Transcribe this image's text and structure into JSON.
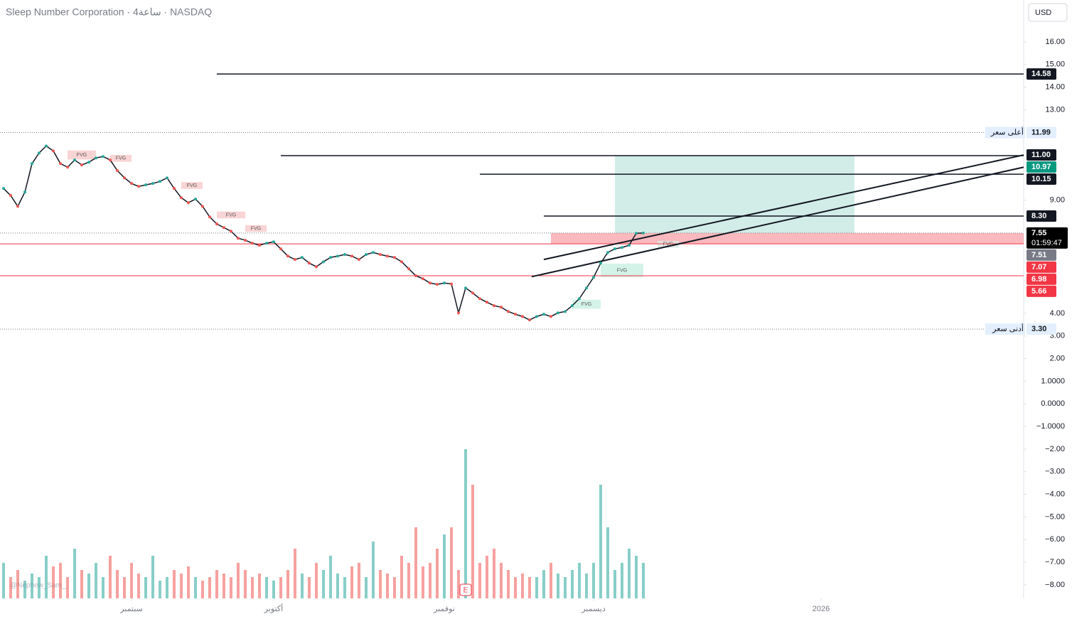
{
  "chart_data": {
    "type": "line",
    "title": "Sleep Number Corporation · 4ساعة · NASDAQ",
    "currency": "USD",
    "watermark": "@Nephew_Sam_",
    "earnings_marker": {
      "label": "E",
      "index": 65
    },
    "xlim": [
      -0.5,
      143.5
    ],
    "xticks": [
      {
        "value": 18,
        "label": "سبتمبر"
      },
      {
        "value": 38,
        "label": "أكتوبر"
      },
      {
        "value": 62,
        "label": "نوفمبر"
      },
      {
        "value": 83,
        "label": "ديسمبر"
      },
      {
        "value": 115,
        "label": "2026"
      }
    ],
    "ylim": [
      -8.6,
      17.85
    ],
    "yticks": [
      {
        "value": 16,
        "label": "16.00"
      },
      {
        "value": 15,
        "label": "15.00"
      },
      {
        "value": 14,
        "label": "14.00"
      },
      {
        "value": 13,
        "label": "13.00"
      },
      {
        "value": 9,
        "label": "9.00"
      },
      {
        "value": 4,
        "label": "4.00"
      },
      {
        "value": 3,
        "label": "3.00"
      },
      {
        "value": 2,
        "label": "2.00"
      },
      {
        "value": 1,
        "label": "1.0000"
      },
      {
        "value": 0,
        "label": "0.0000"
      },
      {
        "value": -1,
        "label": "−1.0000"
      },
      {
        "value": -2,
        "label": "−2.00"
      },
      {
        "value": -3,
        "label": "−3.00"
      },
      {
        "value": -4,
        "label": "−4.00"
      },
      {
        "value": -5,
        "label": "−5.00"
      },
      {
        "value": -6,
        "label": "−6.00"
      },
      {
        "value": -7,
        "label": "−7.00"
      },
      {
        "value": -8,
        "label": "−8.00"
      }
    ],
    "y2lim": [
      0,
      2.1
    ],
    "up_color": "#26a69a",
    "down_color": "#ef5350",
    "series": [
      {
        "color": "#131722",
        "values": [
          9.52,
          9.21,
          8.73,
          9.36,
          10.62,
          11.09,
          11.4,
          11.18,
          10.62,
          10.46,
          10.78,
          10.56,
          10.68,
          10.87,
          10.93,
          10.78,
          10.31,
          9.99,
          9.74,
          9.61,
          9.68,
          9.74,
          9.83,
          9.99,
          9.52,
          9.11,
          8.89,
          9.05,
          8.73,
          8.26,
          7.95,
          7.79,
          7.63,
          7.32,
          7.23,
          7.1,
          7.01,
          7.1,
          7.16,
          6.85,
          6.53,
          6.38,
          6.47,
          6.22,
          6.06,
          6.28,
          6.47,
          6.53,
          6.6,
          6.53,
          6.38,
          6.6,
          6.69,
          6.6,
          6.53,
          6.47,
          6.28,
          5.97,
          5.66,
          5.53,
          5.34,
          5.28,
          5.34,
          5.3,
          4.02,
          5.12,
          4.9,
          4.65,
          4.49,
          4.34,
          4.27,
          4.08,
          3.96,
          3.86,
          3.71,
          3.86,
          3.96,
          3.86,
          4.02,
          4.08,
          4.34,
          4.65,
          5.12,
          5.59,
          6.22,
          6.69,
          6.85,
          6.91,
          7.01,
          7.54,
          7.55
        ]
      },
      {
        "axis": "y2",
        "values": [
          0.5,
          0.3,
          0.4,
          0.25,
          0.35,
          0.3,
          0.6,
          0.45,
          0.5,
          0.3,
          0.7,
          0.4,
          0.35,
          0.5,
          0.3,
          0.6,
          0.4,
          0.3,
          0.5,
          0.35,
          0.3,
          0.6,
          0.25,
          0.3,
          0.4,
          0.35,
          0.45,
          0.3,
          0.25,
          0.3,
          0.4,
          0.35,
          0.3,
          0.5,
          0.4,
          0.3,
          0.35,
          0.3,
          0.25,
          0.3,
          0.4,
          0.7,
          0.35,
          0.3,
          0.5,
          0.4,
          0.6,
          0.35,
          0.3,
          0.45,
          0.5,
          0.3,
          0.8,
          0.4,
          0.35,
          0.3,
          0.6,
          0.5,
          1.0,
          0.45,
          0.5,
          0.7,
          0.9,
          1.0,
          0.4,
          2.1,
          1.6,
          0.5,
          0.6,
          0.7,
          0.5,
          0.4,
          0.3,
          0.35,
          0.3,
          0.3,
          0.4,
          0.5,
          0.35,
          0.3,
          0.4,
          0.5,
          0.35,
          0.5,
          1.6,
          1.0,
          0.4,
          0.5,
          0.7,
          0.6,
          0.5
        ]
      }
    ],
    "levels": [
      {
        "value": 14.58,
        "from": 30,
        "style": "solid",
        "color": "#131722"
      },
      {
        "value": 11.99,
        "from": -0.5,
        "style": "dotted",
        "color": "#787b86"
      },
      {
        "value": 10.97,
        "from": 39,
        "style": "solid",
        "color": "#131722"
      },
      {
        "value": 10.15,
        "from": 67,
        "style": "solid",
        "color": "#131722"
      },
      {
        "value": 8.3,
        "from": 76,
        "style": "solid",
        "color": "#131722"
      },
      {
        "value": 7.55,
        "from": -0.5,
        "style": "dotted",
        "color": "#787b86"
      },
      {
        "value": 7.07,
        "from": -0.5,
        "style": "solid",
        "color": "#f23645"
      },
      {
        "value": 5.66,
        "from": -0.5,
        "style": "solid",
        "color": "#f23645"
      },
      {
        "value": 3.3,
        "from": -0.5,
        "style": "dotted",
        "color": "#787b86"
      }
    ],
    "zones": [
      {
        "from": 86,
        "to": 119.7,
        "low": 7.55,
        "high": 10.97,
        "color": "rgba(8,153,129,0.18)"
      },
      {
        "from": 77,
        "to": 143.5,
        "low": 7.07,
        "high": 7.55,
        "color": "rgba(242,54,69,0.35)"
      }
    ],
    "trendlines": [
      {
        "from": 76,
        "to": 143.5,
        "start": 6.38,
        "end": 11.0
      },
      {
        "from": 74.3,
        "to": 143.5,
        "start": 5.62,
        "end": 10.46
      }
    ],
    "fvg_zones": [
      {
        "label": "FVG",
        "from": 9,
        "to": 13,
        "low": 10.8,
        "high": 11.2,
        "color": "#f7c9c9"
      },
      {
        "label": "FVG",
        "from": 15,
        "to": 18,
        "low": 10.7,
        "high": 11.0,
        "color": "#f7c9c9"
      },
      {
        "label": "FVG",
        "from": 25,
        "to": 28,
        "low": 9.5,
        "high": 9.8,
        "color": "#f7c9c9"
      },
      {
        "label": "FVG",
        "from": 30,
        "to": 34,
        "low": 8.2,
        "high": 8.5,
        "color": "#f7c9c9"
      },
      {
        "label": "FVG",
        "from": 34,
        "to": 37,
        "low": 7.6,
        "high": 7.9,
        "color": "#f7c9c9"
      },
      {
        "label": "FVG",
        "from": 84,
        "to": 90,
        "low": 5.6,
        "high": 6.2,
        "color": "#c9f0e2"
      },
      {
        "label": "FVG",
        "from": 80,
        "to": 84,
        "low": 4.2,
        "high": 4.6,
        "color": "#c9f0e2"
      },
      {
        "label": "FVG",
        "from": 92,
        "to": 95,
        "low": 6.9,
        "high": 7.2,
        "color": "#d9e8e2"
      }
    ],
    "price_labels": [
      {
        "value": 14.58,
        "label": "14.58",
        "bg": "#131722",
        "fg": "#ffffff"
      },
      {
        "value": 11.99,
        "label": "11.99",
        "bg": "#e3effd",
        "fg": "#131722",
        "note": "أعلى سعر"
      },
      {
        "value": 11.0,
        "label": "11.00",
        "bg": "#131722",
        "fg": "#ffffff"
      },
      {
        "value": 10.97,
        "label": "10.97",
        "bg": "#089981",
        "fg": "#ffffff"
      },
      {
        "value": 10.15,
        "label": "10.15",
        "bg": "#131722",
        "fg": "#ffffff"
      },
      {
        "value": 8.3,
        "label": "8.30",
        "bg": "#131722",
        "fg": "#ffffff"
      },
      {
        "value": 7.55,
        "label": "7.55",
        "bg": "#000000",
        "fg": "#ffffff",
        "countdown": "01:59:47"
      },
      {
        "value": 7.51,
        "label": "7.51",
        "bg": "#787b86",
        "fg": "#ffffff"
      },
      {
        "value": 7.07,
        "label": "7.07",
        "bg": "#f23645",
        "fg": "#ffffff"
      },
      {
        "value": 6.98,
        "label": "6.98",
        "bg": "#f23645",
        "fg": "#ffffff"
      },
      {
        "value": 5.66,
        "label": "5.66",
        "bg": "#f23645",
        "fg": "#ffffff"
      },
      {
        "value": 3.3,
        "label": "3.30",
        "bg": "#e3effd",
        "fg": "#131722",
        "note": "أدنى سعر"
      }
    ]
  }
}
